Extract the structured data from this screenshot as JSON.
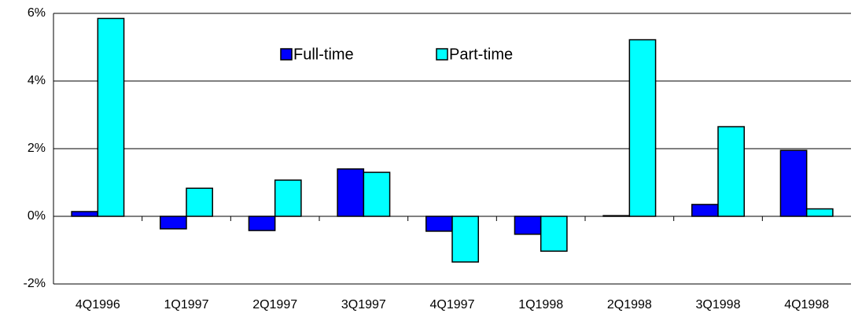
{
  "chart_data": {
    "type": "bar",
    "categories": [
      "4Q1996",
      "1Q1997",
      "2Q1997",
      "3Q1997",
      "4Q1997",
      "1Q1998",
      "2Q1998",
      "3Q1998",
      "4Q1998"
    ],
    "series": [
      {
        "name": "Full-time",
        "color": "#0000ff",
        "values": [
          0.14,
          -0.37,
          -0.42,
          1.4,
          -0.44,
          -0.53,
          0.02,
          0.35,
          1.95
        ]
      },
      {
        "name": "Part-time",
        "color": "#00ffff",
        "values": [
          5.85,
          0.83,
          1.07,
          1.3,
          -1.35,
          -1.03,
          5.22,
          2.65,
          0.22
        ]
      }
    ],
    "ylim": [
      -2,
      6
    ],
    "yticks": [
      {
        "value": -2,
        "label": "-2%"
      },
      {
        "value": 0,
        "label": "0%"
      },
      {
        "value": 2,
        "label": "2%"
      },
      {
        "value": 4,
        "label": "4%"
      },
      {
        "value": 6,
        "label": "6%"
      }
    ],
    "grid": true
  }
}
